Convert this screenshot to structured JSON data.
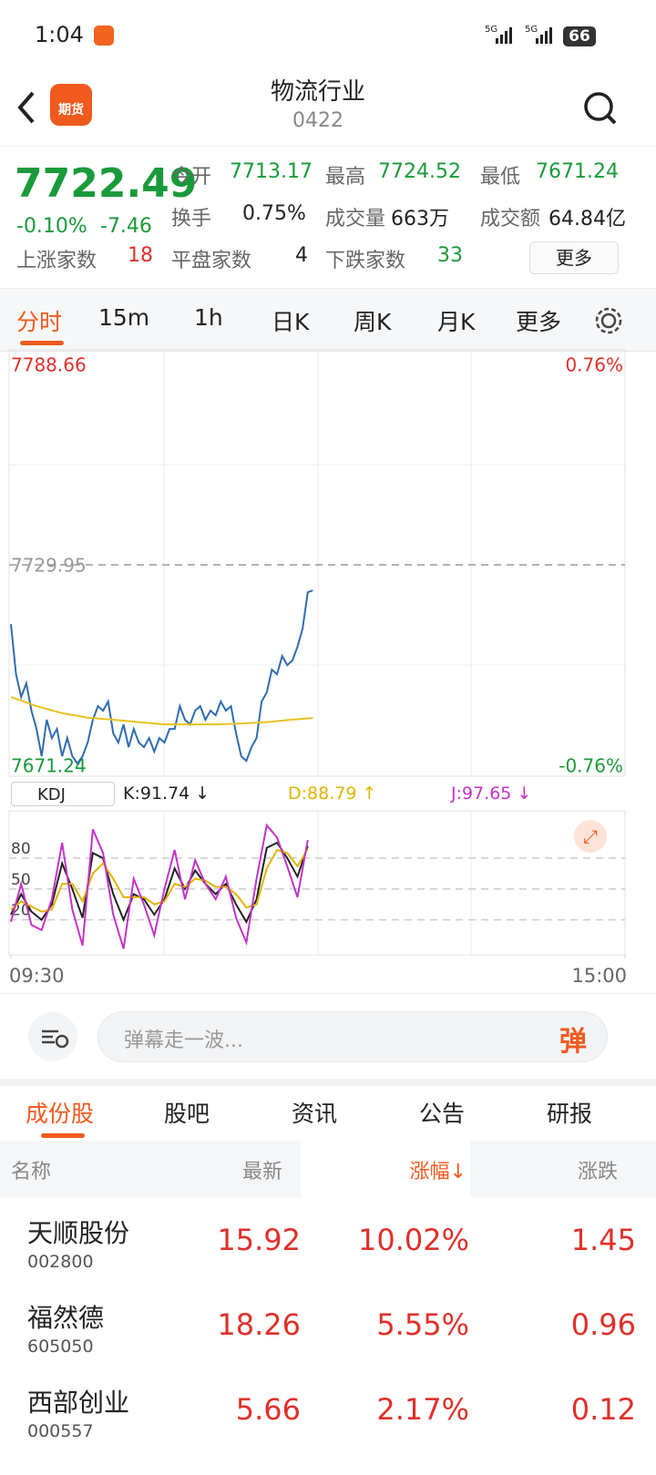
{
  "status_bar": {
    "time": "1:04",
    "battery": "66"
  },
  "header": {
    "logo": "期货",
    "title": "物流行业",
    "code": "0422"
  },
  "quote": {
    "price": "7722.49",
    "change_pct": "-0.10%",
    "change": "-7.46",
    "stats": [
      {
        "label": "今开",
        "value": "7713.17"
      },
      {
        "label": "最高",
        "value": "7724.52"
      },
      {
        "label": "最低",
        "value": "7671.24"
      },
      {
        "label": "换手",
        "value": "0.75%"
      },
      {
        "label": "成交量",
        "value": "663万"
      },
      {
        "label": "成交额",
        "value": "64.84亿"
      }
    ],
    "breadth": [
      {
        "label": "上涨家数",
        "value": "18"
      },
      {
        "label": "平盘家数",
        "value": "4"
      },
      {
        "label": "下跌家数",
        "value": "33"
      }
    ],
    "more": "更多"
  },
  "tabs": [
    "分时",
    "15m",
    "1h",
    "日K",
    "周K",
    "月K",
    "更多"
  ],
  "chart_data": [
    {
      "type": "line",
      "xlim": [
        0,
        240
      ],
      "ylim": [
        7671.24,
        7788.66
      ],
      "yticks": [
        7671.24,
        7729.95,
        7788.66
      ],
      "y2lim": [
        -0.76,
        0.76
      ],
      "y2ticks": [
        {
          "value": -0.76,
          "label": "-0.76%"
        },
        {
          "value": 0.76,
          "label": "0.76%"
        }
      ],
      "series": [
        {
          "color": "#2f6cb0",
          "x": [
            0,
            2,
            4,
            6,
            8,
            10,
            12,
            14,
            16,
            18,
            20,
            22,
            24,
            26,
            28,
            30,
            32,
            34,
            36,
            38,
            40,
            42,
            44,
            46,
            48,
            50,
            52,
            54,
            56,
            58,
            60,
            62,
            64,
            66,
            68,
            70,
            72,
            74,
            76,
            78,
            80,
            82,
            84,
            86,
            88,
            90,
            92,
            94,
            96,
            98,
            100,
            102,
            104,
            106,
            108,
            110,
            112,
            114,
            116,
            118
          ],
          "values": [
            7712.59,
            7697.91,
            7691.24,
            7695.24,
            7687.24,
            7681.9,
            7673.89,
            7684.57,
            7679.23,
            7681.9,
            7673.89,
            7679.23,
            7673.89,
            7671.76,
            7673.89,
            7677.9,
            7684.57,
            7688.57,
            7687.24,
            7689.91,
            7680.57,
            7677.9,
            7683.23,
            7676.56,
            7681.9,
            7677.9,
            7676.56,
            7679.23,
            7675.23,
            7679.23,
            7677.9,
            7681.9,
            7681.9,
            7688.57,
            7684.57,
            7683.23,
            7687.24,
            7688.57,
            7684.57,
            7687.24,
            7685.9,
            7689.91,
            7687.24,
            7688.57,
            7680.57,
            7673.89,
            7672.56,
            7676.56,
            7679.23,
            7689.91,
            7692.58,
            7699.25,
            7697.91,
            7703.25,
            7700.58,
            7701.92,
            7705.92,
            7711.26,
            7721.93,
            7722.49
          ]
        },
        {
          "color": "#e8c21e",
          "x": [
            0,
            10,
            20,
            30,
            40,
            50,
            60,
            70,
            80,
            90,
            100,
            110,
            118
          ],
          "values": [
            7691.24,
            7688.57,
            7686.5,
            7685.2,
            7684.57,
            7683.9,
            7683.23,
            7683.23,
            7683.23,
            7683.5,
            7683.9,
            7684.6,
            7685.1
          ]
        }
      ]
    },
    {
      "type": "line",
      "indicator": "KDJ",
      "xlim": [
        0,
        240
      ],
      "ylim": [
        -14,
        126
      ],
      "yticks": [
        20,
        50,
        80
      ],
      "xticks": [
        {
          "value": 0,
          "label": "09:30"
        },
        {
          "value": 240,
          "label": "15:00"
        }
      ],
      "series": [
        {
          "label": "K:91.74 ↓",
          "color": "#222222",
          "x": [
            0,
            4,
            8,
            12,
            16,
            20,
            24,
            28,
            32,
            36,
            40,
            44,
            48,
            52,
            56,
            60,
            64,
            68,
            72,
            76,
            80,
            84,
            88,
            92,
            96,
            100,
            104,
            108,
            112,
            116
          ],
          "values": [
            25,
            45,
            28,
            20,
            35,
            75,
            50,
            22,
            85,
            80,
            45,
            20,
            45,
            40,
            25,
            40,
            70,
            50,
            68,
            55,
            45,
            55,
            35,
            18,
            40,
            90,
            95,
            80,
            62,
            91.74
          ]
        },
        {
          "label": "D:88.79 ↑",
          "color": "#e0b400",
          "x": [
            0,
            4,
            8,
            12,
            16,
            20,
            24,
            28,
            32,
            36,
            40,
            44,
            48,
            52,
            56,
            60,
            64,
            68,
            72,
            76,
            80,
            84,
            88,
            92,
            96,
            100,
            104,
            108,
            112,
            116
          ],
          "values": [
            30,
            38,
            33,
            28,
            30,
            55,
            55,
            38,
            65,
            75,
            60,
            42,
            42,
            42,
            35,
            38,
            55,
            52,
            60,
            58,
            52,
            52,
            45,
            32,
            35,
            70,
            88,
            85,
            72,
            88.79
          ]
        },
        {
          "label": "J:97.65 ↓",
          "color": "#c533c8",
          "x": [
            0,
            4,
            8,
            12,
            16,
            20,
            24,
            28,
            32,
            36,
            40,
            44,
            48,
            52,
            56,
            60,
            64,
            68,
            72,
            76,
            80,
            84,
            88,
            92,
            96,
            100,
            104,
            108,
            112,
            116
          ],
          "values": [
            18,
            55,
            15,
            10,
            40,
            95,
            30,
            -5,
            108,
            85,
            25,
            -8,
            60,
            35,
            5,
            50,
            88,
            40,
            78,
            55,
            40,
            62,
            22,
            -2,
            60,
            112,
            100,
            72,
            42,
            97.65
          ]
        }
      ]
    }
  ],
  "danmaku": {
    "placeholder": "弹幕走一波...",
    "button": "弹"
  },
  "section_tabs": [
    "成份股",
    "股吧",
    "资讯",
    "公告",
    "研报"
  ],
  "table": {
    "columns": [
      "名称",
      "最新",
      "涨幅↓",
      "涨跌"
    ],
    "rows": [
      [
        "天顺股份",
        "002800",
        "15.92",
        "10.02%",
        "1.45"
      ],
      [
        "福然德",
        "605050",
        "18.26",
        "5.55%",
        "0.96"
      ],
      [
        "西部创业",
        "000557",
        "5.66",
        "2.17%",
        "0.12"
      ]
    ]
  }
}
